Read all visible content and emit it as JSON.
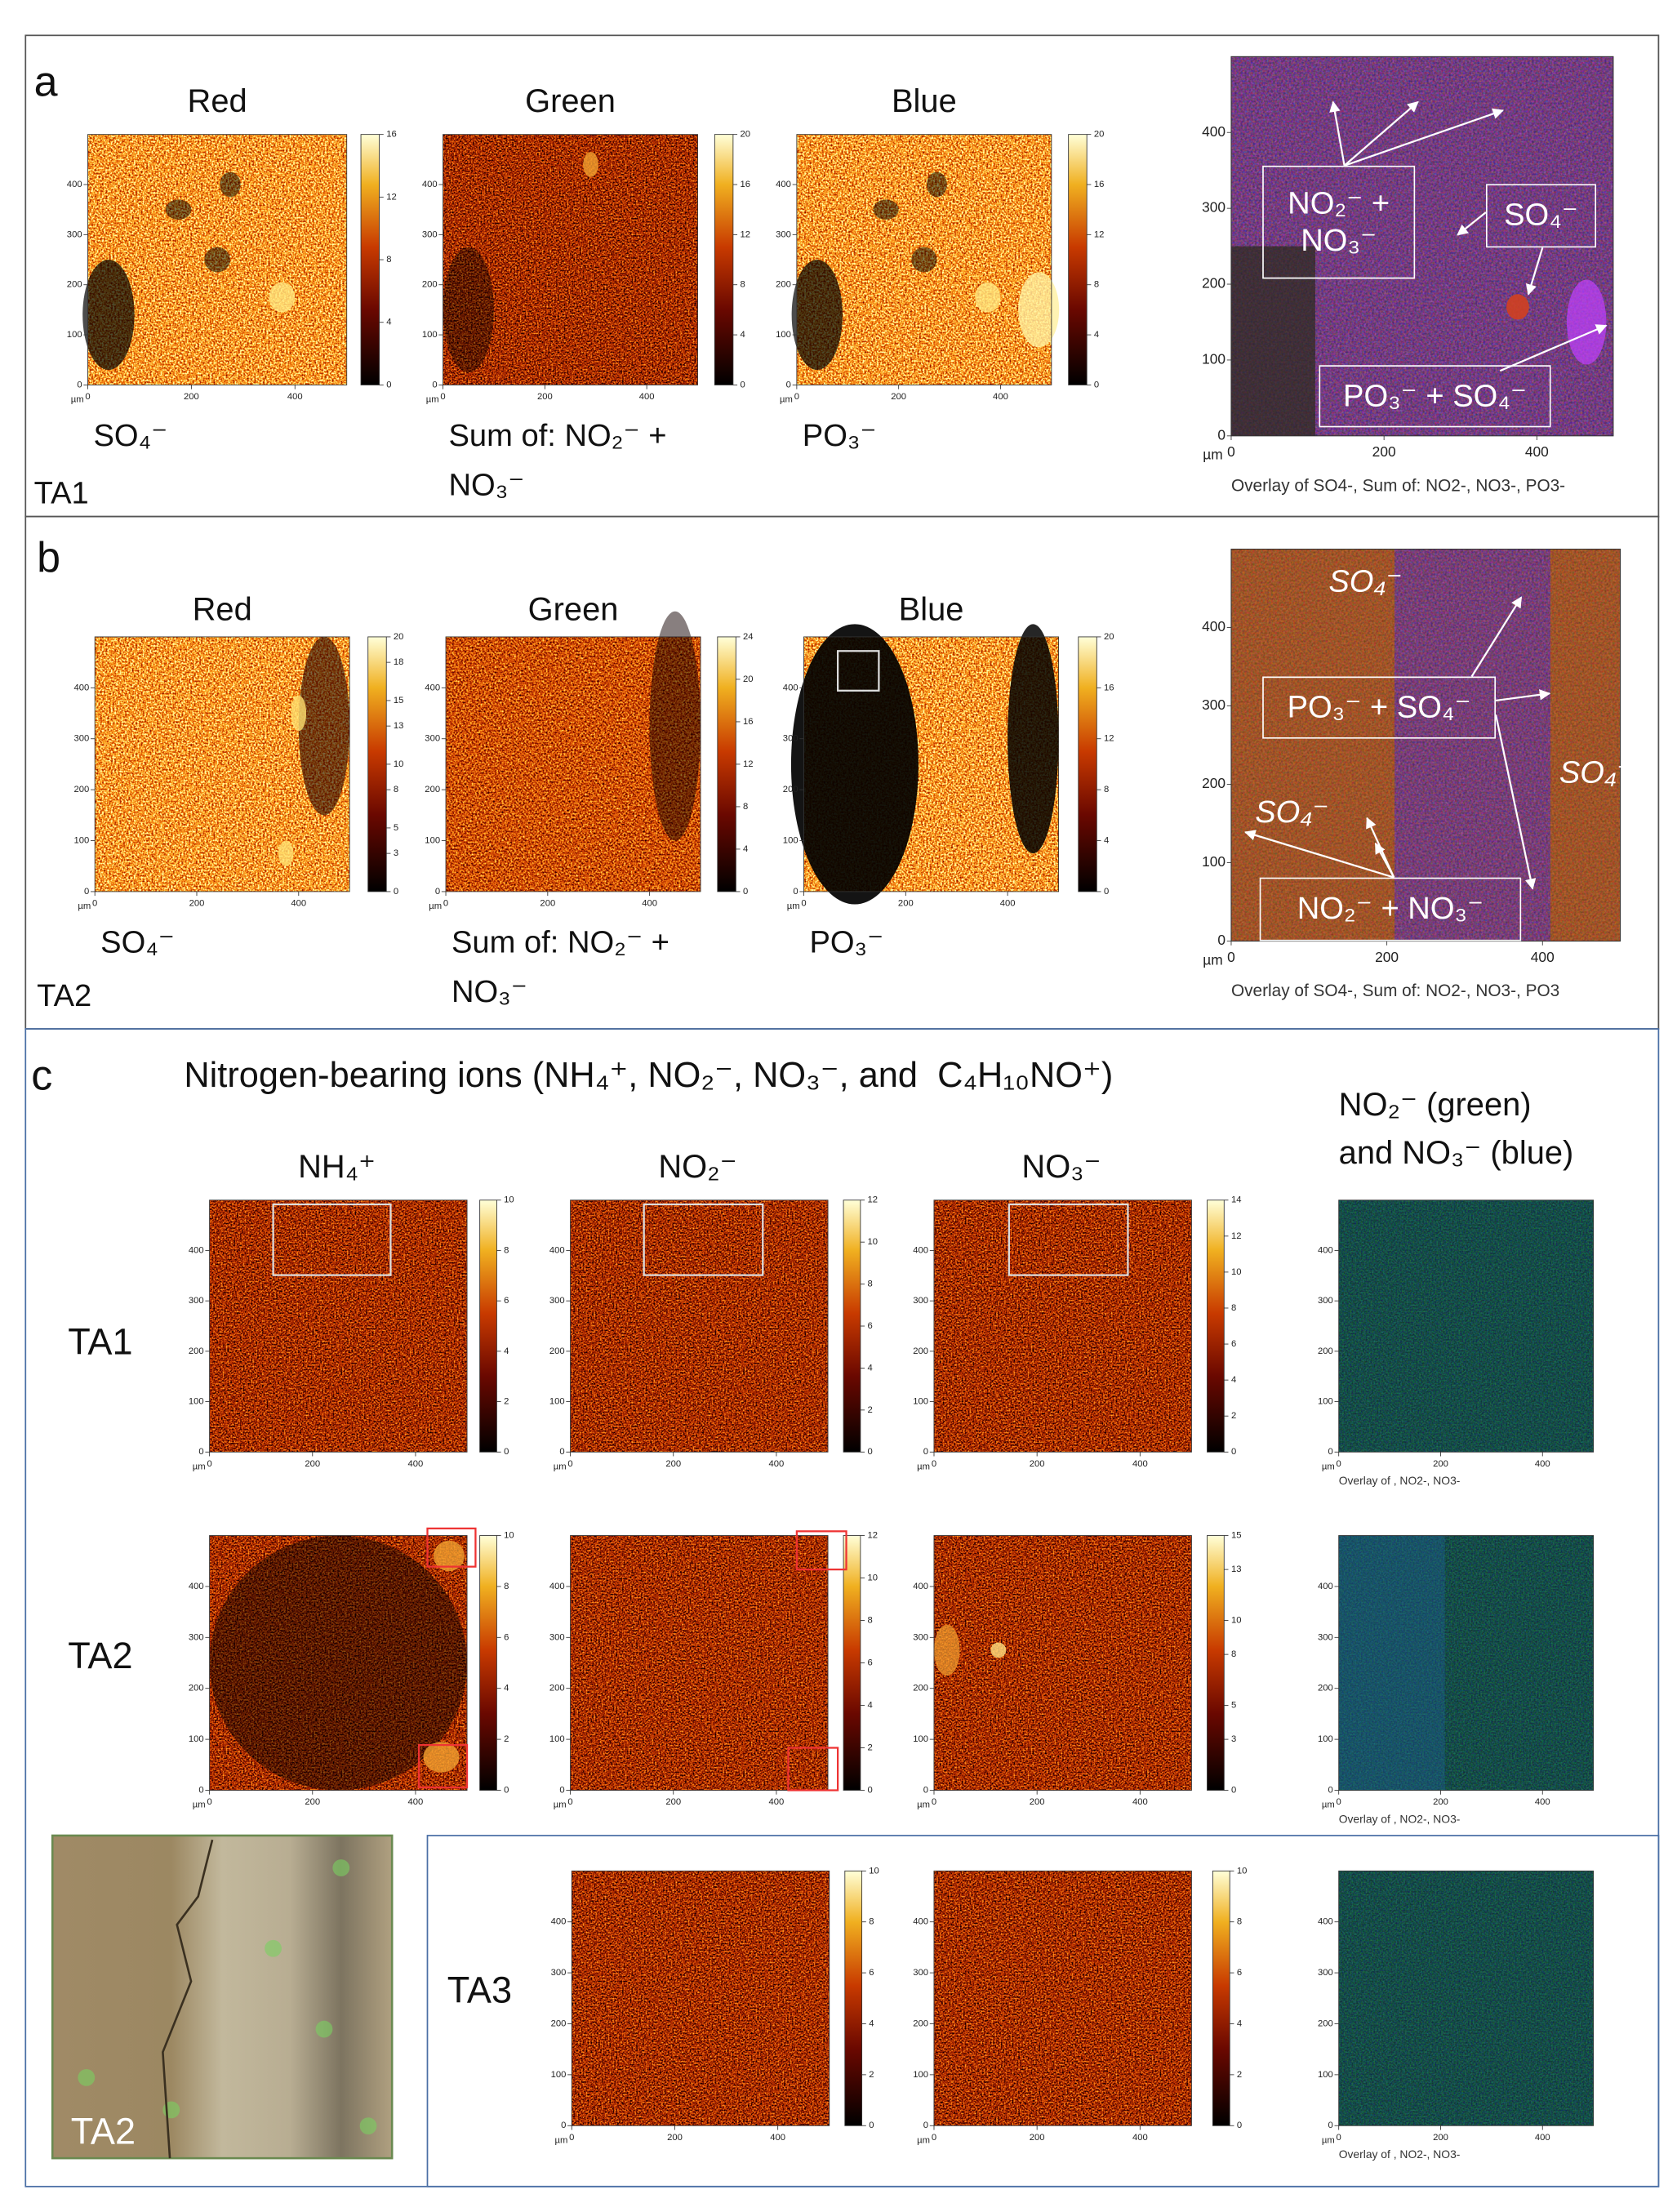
{
  "map_axis": {
    "unit": "µm",
    "range": [
      0,
      500
    ],
    "xticks": [
      0,
      200,
      400
    ],
    "yticks": [
      0,
      100,
      200,
      300,
      400
    ]
  },
  "panel_a": {
    "label": "a",
    "sample": "TA1",
    "maps": [
      {
        "channel": "Red",
        "ion": "SO₄⁻",
        "colorbar": [
          0,
          4,
          8,
          12,
          16
        ]
      },
      {
        "channel": "Green",
        "ion": "Sum of: NO₂⁻ + NO₃⁻",
        "colorbar": [
          0,
          4,
          8,
          12,
          16,
          20
        ]
      },
      {
        "channel": "Blue",
        "ion": "PO₃⁻",
        "colorbar": [
          0,
          4,
          8,
          12,
          16,
          20
        ]
      }
    ],
    "overlay": {
      "caption": "Overlay of SO4-, Sum of: NO2-, NO3-, PO3-",
      "annotations": [
        "NO₂⁻ + NO₃⁻",
        "SO₄⁻",
        "PO₃⁻ + SO₄⁻"
      ]
    }
  },
  "panel_b": {
    "label": "b",
    "sample": "TA2",
    "maps": [
      {
        "channel": "Red",
        "ion": "SO₄⁻",
        "colorbar": [
          0,
          3,
          5,
          8,
          10,
          13,
          15,
          18,
          20
        ]
      },
      {
        "channel": "Green",
        "ion": "Sum of: NO₂⁻ + NO₃⁻",
        "colorbar": [
          0,
          4,
          8,
          12,
          16,
          20,
          24
        ]
      },
      {
        "channel": "Blue",
        "ion": "PO₃⁻",
        "colorbar": [
          0,
          4,
          8,
          12,
          16,
          20
        ]
      }
    ],
    "overlay": {
      "caption": "Overlay of SO4-, Sum of: NO2-, NO3-, PO3",
      "annotations": [
        "SO₄⁻",
        "PO₃⁻ + SO₄⁻",
        "SO₄⁻",
        "SO₄⁻",
        "NO₂⁻ + NO₃⁻"
      ]
    }
  },
  "panel_c": {
    "label": "c",
    "title": "Nitrogen-bearing ions (NH₄⁺, NO₂⁻, NO₃⁻, and  C₄H₁₀NO⁺)",
    "columns": [
      "NH₄⁺",
      "NO₂⁻",
      "NO₃⁻"
    ],
    "overlay_header": [
      "NO₂⁻ (green)",
      "and NO₃⁻ (blue)"
    ],
    "rows": [
      {
        "sample": "TA1",
        "maps": [
          {
            "colorbar": [
              0,
              2,
              4,
              6,
              8,
              10
            ]
          },
          {
            "colorbar": [
              0,
              2,
              4,
              6,
              8,
              10,
              12
            ]
          },
          {
            "colorbar": [
              0,
              2,
              4,
              6,
              8,
              10,
              12,
              14
            ]
          }
        ],
        "overlay_caption": "Overlay of , NO2-, NO3-"
      },
      {
        "sample": "TA2",
        "maps": [
          {
            "colorbar": [
              0,
              2,
              4,
              6,
              8,
              10
            ]
          },
          {
            "colorbar": [
              0,
              2,
              4,
              6,
              8,
              10,
              12
            ]
          },
          {
            "colorbar": [
              0,
              3,
              5,
              8,
              10,
              13,
              15
            ]
          }
        ],
        "overlay_caption": "Overlay of , NO2-, NO3-"
      },
      {
        "sample": "TA3",
        "maps": [
          {
            "colorbar": [
              0,
              2,
              4,
              6,
              8,
              10
            ]
          },
          {
            "colorbar": [
              0,
              2,
              4,
              6,
              8,
              10
            ]
          }
        ],
        "overlay_caption": "Overlay of , NO2-, NO3-"
      }
    ],
    "optical_image": {
      "label": "TA2"
    }
  }
}
